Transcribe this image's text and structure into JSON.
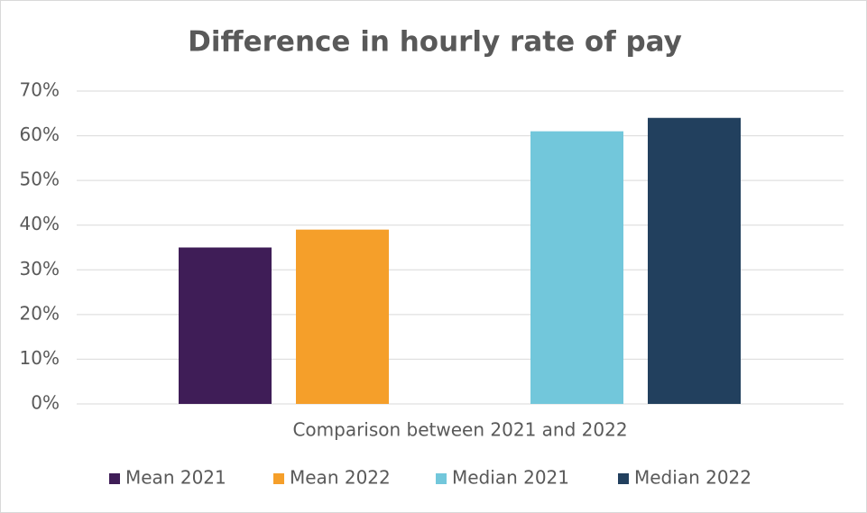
{
  "chart_data": {
    "type": "bar",
    "title": "Difference in hourly rate of pay",
    "x_label": "Comparison between 2021 and 2022",
    "categories": [
      "Comparison between 2021 and 2022"
    ],
    "series": [
      {
        "name": "Mean 2021",
        "color": "#3f1d57",
        "values": [
          35
        ]
      },
      {
        "name": "Mean 2022",
        "color": "#f59f2a",
        "values": [
          39
        ]
      },
      {
        "name": "Median 2021",
        "color": "#72c7db",
        "values": [
          61
        ]
      },
      {
        "name": "Median 2022",
        "color": "#22405e",
        "values": [
          64
        ]
      }
    ],
    "ylim": [
      0,
      70
    ],
    "yticks": [
      {
        "value": 0,
        "label": "0%"
      },
      {
        "value": 10,
        "label": "10%"
      },
      {
        "value": 20,
        "label": "20%"
      },
      {
        "value": 30,
        "label": "30%"
      },
      {
        "value": 40,
        "label": "40%"
      },
      {
        "value": 50,
        "label": "50%"
      },
      {
        "value": 60,
        "label": "60%"
      },
      {
        "value": 70,
        "label": "70%"
      }
    ],
    "grid": true,
    "legend": "bottom"
  }
}
